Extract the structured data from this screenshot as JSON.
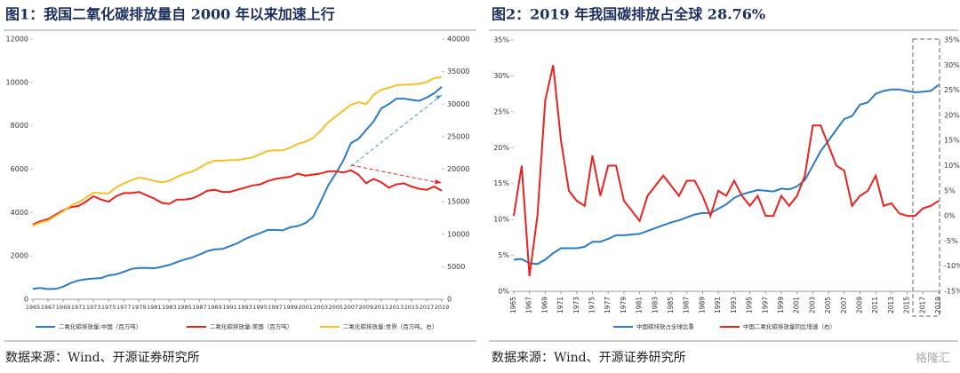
{
  "chart_data": [
    {
      "type": "line",
      "title": "图1：我国二氧化碳排放量自 2000 年以来加速上行",
      "source": "数据来源：Wind、开源证券研究所",
      "x": [
        1965,
        1966,
        1967,
        1968,
        1969,
        1970,
        1971,
        1972,
        1973,
        1974,
        1975,
        1976,
        1977,
        1978,
        1979,
        1980,
        1981,
        1982,
        1983,
        1984,
        1985,
        1986,
        1987,
        1988,
        1989,
        1990,
        1991,
        1992,
        1993,
        1994,
        1995,
        1996,
        1997,
        1998,
        1999,
        2000,
        2001,
        2002,
        2003,
        2004,
        2005,
        2006,
        2007,
        2008,
        2009,
        2010,
        2011,
        2012,
        2013,
        2014,
        2015,
        2016,
        2017,
        2018,
        2019
      ],
      "xlim": [
        1965,
        2019
      ],
      "xticks": [
        1965,
        1967,
        1969,
        1971,
        1973,
        1975,
        1977,
        1979,
        1981,
        1983,
        1985,
        1987,
        1989,
        1991,
        1993,
        1995,
        1997,
        1999,
        2001,
        2003,
        2005,
        2007,
        2009,
        2011,
        2013,
        2015,
        2017,
        2019
      ],
      "ylim": [
        0,
        12000
      ],
      "yticks": [
        0,
        2000,
        4000,
        6000,
        8000,
        10000,
        12000
      ],
      "y2lim": [
        0,
        40000
      ],
      "y2ticks": [
        0,
        5000,
        10000,
        15000,
        20000,
        25000,
        30000,
        35000,
        40000
      ],
      "series": [
        {
          "name": "二氧化碳排放量:中国（百万吨）",
          "color": "#2e7bbf",
          "values": [
            480,
            520,
            470,
            480,
            580,
            750,
            870,
            920,
            960,
            980,
            1100,
            1150,
            1270,
            1400,
            1440,
            1450,
            1430,
            1500,
            1580,
            1710,
            1830,
            1920,
            2060,
            2220,
            2300,
            2320,
            2450,
            2580,
            2780,
            2920,
            3050,
            3200,
            3200,
            3180,
            3320,
            3380,
            3520,
            3800,
            4500,
            5250,
            5800,
            6400,
            7200,
            7400,
            7800,
            8200,
            8800,
            9000,
            9250,
            9250,
            9200,
            9150,
            9300,
            9500,
            9800
          ]
        },
        {
          "name": "二氧化碳排放量:美国（百万吨）",
          "color": "#e8231f",
          "values": [
            3450,
            3600,
            3700,
            3900,
            4100,
            4250,
            4300,
            4500,
            4750,
            4600,
            4500,
            4750,
            4900,
            4900,
            4950,
            4800,
            4650,
            4450,
            4400,
            4600,
            4600,
            4650,
            4800,
            5000,
            5050,
            4950,
            4950,
            5050,
            5150,
            5250,
            5300,
            5450,
            5550,
            5600,
            5650,
            5800,
            5700,
            5750,
            5800,
            5900,
            5900,
            5850,
            5950,
            5750,
            5350,
            5550,
            5400,
            5150,
            5300,
            5350,
            5200,
            5100,
            5050,
            5200,
            5000
          ]
        },
        {
          "name": "二氧化碳排放量:世界（百万吨，右）",
          "color": "#f2c12e",
          "axis": "y2",
          "values": [
            11300,
            11800,
            12100,
            12800,
            13500,
            14400,
            14900,
            15600,
            16400,
            16300,
            16300,
            17200,
            17800,
            18300,
            18700,
            18500,
            18200,
            18000,
            18200,
            18800,
            19300,
            19600,
            20200,
            20900,
            21300,
            21300,
            21400,
            21400,
            21600,
            21800,
            22300,
            22800,
            22900,
            22900,
            23300,
            23900,
            24200,
            24800,
            25900,
            27200,
            28100,
            29000,
            29900,
            30300,
            30000,
            31400,
            32200,
            32500,
            32900,
            33000,
            33000,
            33100,
            33400,
            34000,
            34200
          ]
        }
      ]
    },
    {
      "type": "line",
      "title": "图2：2019 年我国碳排放占全球 28.76%",
      "source": "数据来源：Wind、开源证券研究所",
      "x": [
        1965,
        1966,
        1967,
        1968,
        1969,
        1970,
        1971,
        1972,
        1973,
        1974,
        1975,
        1976,
        1977,
        1978,
        1979,
        1980,
        1981,
        1982,
        1983,
        1984,
        1985,
        1986,
        1987,
        1988,
        1989,
        1990,
        1991,
        1992,
        1993,
        1994,
        1995,
        1996,
        1997,
        1998,
        1999,
        2000,
        2001,
        2002,
        2003,
        2004,
        2005,
        2006,
        2007,
        2008,
        2009,
        2010,
        2011,
        2012,
        2013,
        2014,
        2015,
        2016,
        2017,
        2018,
        2019
      ],
      "xlim": [
        1965,
        2019
      ],
      "xticks": [
        1965,
        1967,
        1969,
        1971,
        1973,
        1975,
        1977,
        1979,
        1981,
        1983,
        1985,
        1987,
        1989,
        1991,
        1993,
        1995,
        1997,
        1999,
        2001,
        2003,
        2005,
        2007,
        2009,
        2011,
        2013,
        2015,
        2017,
        2019
      ],
      "ylim": [
        0,
        35
      ],
      "yticks": [
        {
          "value": 0,
          "label": "0%"
        },
        {
          "value": 5,
          "label": "5%"
        },
        {
          "value": 10,
          "label": "10%"
        },
        {
          "value": 15,
          "label": "15%"
        },
        {
          "value": 20,
          "label": "20%"
        },
        {
          "value": 25,
          "label": "25%"
        },
        {
          "value": 30,
          "label": "30%"
        },
        {
          "value": 35,
          "label": "35%"
        }
      ],
      "y2lim": [
        -15,
        35
      ],
      "y2ticks": [
        {
          "value": -15,
          "label": "-15%"
        },
        {
          "value": -10,
          "label": "-10%"
        },
        {
          "value": -5,
          "label": "-5%"
        },
        {
          "value": 0,
          "label": "0%"
        },
        {
          "value": 5,
          "label": "5%"
        },
        {
          "value": 10,
          "label": "10%"
        },
        {
          "value": 15,
          "label": "15%"
        },
        {
          "value": 20,
          "label": "20%"
        },
        {
          "value": 25,
          "label": "25%"
        },
        {
          "value": 30,
          "label": "30%"
        },
        {
          "value": 35,
          "label": "35%"
        }
      ],
      "series": [
        {
          "name": "中国碳排放占全球比重",
          "color": "#2e7bbf",
          "values": [
            4.4,
            4.5,
            3.9,
            3.8,
            4.4,
            5.3,
            6.0,
            6.0,
            6.0,
            6.2,
            6.9,
            6.9,
            7.3,
            7.8,
            7.8,
            7.9,
            8.0,
            8.4,
            8.8,
            9.2,
            9.6,
            9.9,
            10.3,
            10.7,
            10.9,
            10.9,
            11.5,
            12.1,
            13.0,
            13.5,
            13.8,
            14.1,
            14.0,
            13.9,
            14.3,
            14.2,
            14.6,
            15.5,
            17.5,
            19.5,
            21.0,
            22.5,
            24.0,
            24.4,
            26.0,
            26.3,
            27.5,
            27.9,
            28.1,
            28.1,
            27.9,
            27.7,
            27.8,
            27.9,
            28.76
          ]
        },
        {
          "name": "中国二氧化碳排放量同比增速（右）",
          "color": "#e8231f",
          "axis": "y2",
          "values": [
            0,
            10,
            -12,
            0,
            23,
            30,
            15,
            5,
            3,
            2,
            12,
            4,
            10,
            10,
            3,
            1,
            -1,
            4,
            6,
            8,
            6,
            4,
            7,
            7,
            4,
            0,
            5,
            4,
            7,
            4,
            2,
            4,
            0,
            0,
            4,
            2,
            4,
            8,
            18,
            18,
            14,
            10,
            9,
            2,
            4,
            5,
            8,
            2,
            2.5,
            0.5,
            0,
            0,
            1.5,
            2,
            3
          ]
        }
      ]
    }
  ],
  "watermark": "格隆汇"
}
